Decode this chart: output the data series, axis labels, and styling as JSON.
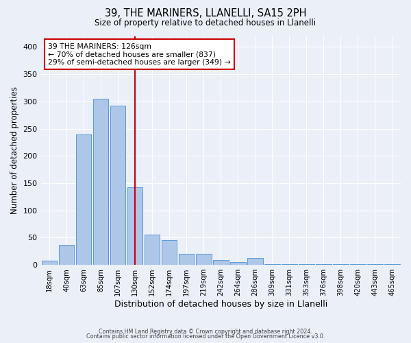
{
  "title": "39, THE MARINERS, LLANELLI, SA15 2PH",
  "subtitle": "Size of property relative to detached houses in Llanelli",
  "xlabel": "Distribution of detached houses by size in Llanelli",
  "ylabel": "Number of detached properties",
  "bar_labels": [
    "18sqm",
    "40sqm",
    "63sqm",
    "85sqm",
    "107sqm",
    "130sqm",
    "152sqm",
    "174sqm",
    "197sqm",
    "219sqm",
    "242sqm",
    "264sqm",
    "286sqm",
    "309sqm",
    "331sqm",
    "353sqm",
    "376sqm",
    "398sqm",
    "420sqm",
    "443sqm",
    "465sqm"
  ],
  "bar_values": [
    8,
    37,
    240,
    305,
    292,
    143,
    56,
    45,
    20,
    20,
    9,
    5,
    13,
    2,
    1,
    2,
    1,
    1,
    1,
    1,
    1
  ],
  "bar_color": "#aec6e8",
  "bar_edge_color": "#5b9bd5",
  "vline_x": 5,
  "vline_color": "#cc0000",
  "annotation_title": "39 THE MARINERS: 126sqm",
  "annotation_line1": "← 70% of detached houses are smaller (837)",
  "annotation_line2": "29% of semi-detached houses are larger (349) →",
  "annotation_box_color": "#cc0000",
  "ylim": [
    0,
    420
  ],
  "yticks": [
    0,
    50,
    100,
    150,
    200,
    250,
    300,
    350,
    400
  ],
  "background_color": "#eaeff8",
  "footer1": "Contains HM Land Registry data © Crown copyright and database right 2024.",
  "footer2": "Contains public sector information licensed under the Open Government Licence v3.0."
}
